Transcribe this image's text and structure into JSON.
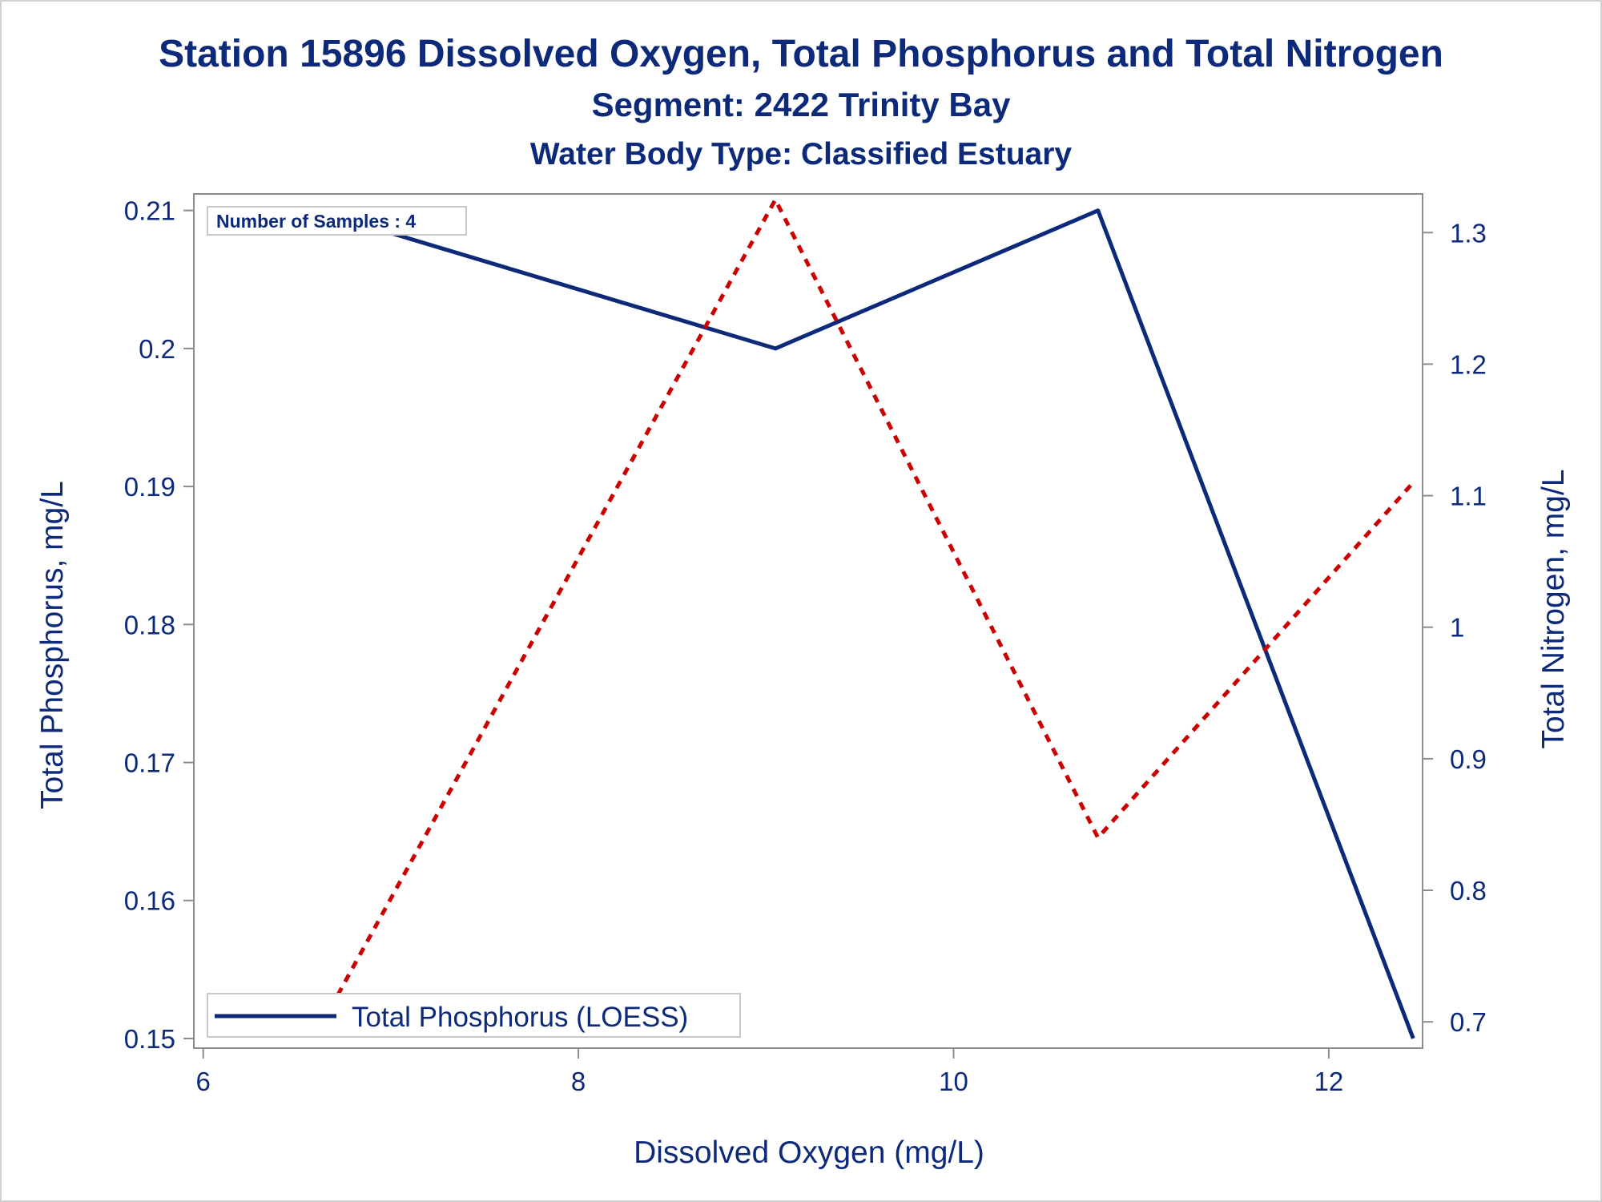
{
  "titles": {
    "line1": "Station 15896  Dissolved Oxygen, Total Phosphorus and Total Nitrogen",
    "line2": "Segment: 2422  Trinity Bay",
    "line3": "Water Body Type: Classified Estuary"
  },
  "inset_label": "Number of Samples : 4",
  "legend": {
    "position": "bottom-left",
    "entries": [
      "Total Phosphorus (LOESS)"
    ]
  },
  "colors": {
    "text": "#0d2a7a",
    "phosphorus_line": "#0d2a7a",
    "nitrogen_line": "#cc0000",
    "axis": "#8c8c8c",
    "frame": "#d2d2d2"
  },
  "chart_data": {
    "type": "line",
    "title": "Station 15896  Dissolved Oxygen, Total Phosphorus and Total Nitrogen",
    "xlabel": "Dissolved Oxygen (mg/L)",
    "ylabel": "Total Phosphorus, mg/L",
    "y2label": "Total Nitrogen, mg/L",
    "xlim": [
      5.95,
      12.5
    ],
    "ylim": [
      0.1493,
      0.2112
    ],
    "y2lim": [
      0.68,
      1.3294
    ],
    "xticks": [
      {
        "value": 6,
        "label": "6"
      },
      {
        "value": 8,
        "label": "8"
      },
      {
        "value": 10,
        "label": "10"
      },
      {
        "value": 12,
        "label": "12"
      }
    ],
    "yticks": [
      {
        "value": 0.15,
        "label": "0.15"
      },
      {
        "value": 0.16,
        "label": "0.16"
      },
      {
        "value": 0.17,
        "label": "0.17"
      },
      {
        "value": 0.18,
        "label": "0.18"
      },
      {
        "value": 0.19,
        "label": "0.19"
      },
      {
        "value": 0.2,
        "label": "0.2"
      },
      {
        "value": 0.21,
        "label": "0.21"
      }
    ],
    "y2ticks": [
      {
        "value": 0.7,
        "label": "0.7"
      },
      {
        "value": 0.8,
        "label": "0.8"
      },
      {
        "value": 0.9,
        "label": "0.9"
      },
      {
        "value": 1.0,
        "label": "1"
      },
      {
        "value": 1.1,
        "label": "1.1"
      },
      {
        "value": 1.2,
        "label": "1.2"
      },
      {
        "value": 1.3,
        "label": "1.3"
      }
    ],
    "grid": false,
    "series": [
      {
        "name": "Total Phosphorus (LOESS)",
        "axis": "left",
        "style": "solid",
        "x": [
          6.6,
          9.05,
          10.77,
          12.45
        ],
        "y": [
          0.21,
          0.2,
          0.21,
          0.15
        ]
      },
      {
        "axis": "right",
        "style": "dashed",
        "x": [
          6.6,
          9.05,
          10.77,
          12.45
        ],
        "y": [
          0.69,
          1.325,
          0.84,
          1.11
        ]
      }
    ]
  }
}
